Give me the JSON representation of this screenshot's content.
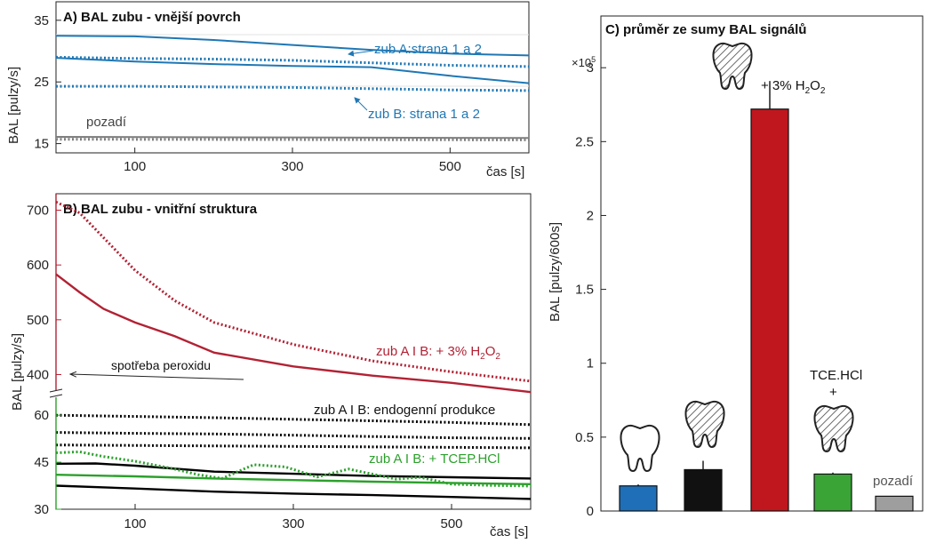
{
  "chart_data": [
    {
      "panel": "A",
      "type": "line",
      "title": "A) BAL zubu - vnější povrch",
      "xlabel": "čas [s]",
      "ylabel": "BAL [pulzy/s]",
      "xlim": [
        0,
        600
      ],
      "ylim": [
        13.5,
        38
      ],
      "x_ticks": [
        100,
        300,
        500
      ],
      "y_ticks": [
        15,
        25,
        35
      ],
      "colors": {
        "zub": "#1f77b4",
        "pozadi": "#7f7f7f"
      },
      "series": [
        {
          "group": "zub A",
          "style": "solid",
          "x": [
            0,
            100,
            200,
            300,
            400,
            500,
            600
          ],
          "y": [
            32.5,
            32.4,
            31.8,
            31.0,
            30.2,
            29.6,
            29.3
          ]
        },
        {
          "group": "zub A",
          "style": "dotted",
          "x": [
            0,
            100,
            200,
            300,
            400,
            500,
            600
          ],
          "y": [
            29.0,
            28.8,
            28.7,
            28.5,
            28.1,
            27.7,
            27.5
          ]
        },
        {
          "group": "zub A",
          "style": "solid",
          "x": [
            0,
            100,
            200,
            300,
            400,
            500,
            600
          ],
          "y": [
            28.9,
            28.3,
            27.9,
            27.6,
            27.4,
            26.0,
            24.8
          ]
        },
        {
          "group": "zub B",
          "style": "dotted",
          "x": [
            0,
            100,
            200,
            300,
            400,
            500,
            600
          ],
          "y": [
            24.3,
            24.3,
            24.2,
            24.1,
            23.9,
            23.7,
            23.6
          ]
        },
        {
          "group": "pozadí",
          "style": "solid",
          "x": [
            0,
            600
          ],
          "y": [
            16.1,
            15.9
          ]
        },
        {
          "group": "pozadí",
          "style": "dotted",
          "x": [
            0,
            600
          ],
          "y": [
            15.7,
            15.6
          ]
        }
      ],
      "annotations": [
        {
          "text": "zub A:strana 1 a 2"
        },
        {
          "text": "zub B: strana 1 a 2"
        },
        {
          "text": "pozadí"
        }
      ]
    },
    {
      "panel": "B",
      "type": "line",
      "title": "B) BAL zubu - vnitřní struktura",
      "xlabel": "čas [s]",
      "ylabel": "BAL [pulzy/s]",
      "xlim": [
        0,
        600
      ],
      "y_upper_range": [
        370,
        730
      ],
      "y_lower_range": [
        30,
        66
      ],
      "x_ticks": [
        100,
        300,
        500
      ],
      "y_ticks_upper": [
        400,
        500,
        600,
        700
      ],
      "y_ticks_lower": [
        30,
        45,
        60
      ],
      "colors": {
        "peroxid": "#b22234",
        "endogenni": "#000000",
        "tcep": "#2ca02c"
      },
      "series": [
        {
          "group": "peroxid",
          "style": "dotted",
          "x": [
            0,
            30,
            60,
            100,
            150,
            200,
            300,
            400,
            500,
            600
          ],
          "y": [
            715,
            695,
            650,
            590,
            535,
            495,
            455,
            425,
            405,
            388
          ]
        },
        {
          "group": "peroxid",
          "style": "solid",
          "x": [
            0,
            30,
            60,
            100,
            150,
            200,
            300,
            400,
            500,
            600
          ],
          "y": [
            583,
            550,
            520,
            495,
            470,
            440,
            415,
            398,
            385,
            368
          ]
        },
        {
          "group": "endogenni",
          "style": "dotted",
          "x": [
            0,
            100,
            200,
            300,
            400,
            500,
            600
          ],
          "y": [
            60,
            59.6,
            59.2,
            58.7,
            58.2,
            57.7,
            57.0
          ]
        },
        {
          "group": "endogenni",
          "style": "dotted",
          "x": [
            0,
            100,
            200,
            300,
            400,
            500,
            600
          ],
          "y": [
            54.5,
            54.2,
            54.0,
            53.6,
            53.2,
            52.8,
            52.6
          ]
        },
        {
          "group": "endogenni",
          "style": "dotted",
          "x": [
            0,
            600
          ],
          "y": [
            50.5,
            49.6
          ]
        },
        {
          "group": "endogenni",
          "style": "solid",
          "x": [
            0,
            50,
            100,
            200,
            300,
            400,
            500,
            600
          ],
          "y": [
            44.5,
            44.6,
            43.9,
            42.0,
            41.3,
            40.6,
            40.2,
            39.8
          ]
        },
        {
          "group": "endogenni",
          "style": "solid",
          "x": [
            0,
            100,
            200,
            300,
            400,
            500,
            600
          ],
          "y": [
            37.5,
            36.6,
            35.6,
            35.0,
            34.5,
            33.9,
            33.3
          ]
        },
        {
          "group": "tcep",
          "style": "dotted",
          "x": [
            0,
            30,
            60,
            100,
            150,
            180,
            210,
            250,
            290,
            330,
            370,
            400,
            430,
            460,
            500,
            550,
            600
          ],
          "y": [
            48,
            48.3,
            46.8,
            45.3,
            42.8,
            41.0,
            39.8,
            44.2,
            43.5,
            40.3,
            42.8,
            41.2,
            39.6,
            40.2,
            38.0,
            37.6,
            37.4
          ]
        },
        {
          "group": "tcep",
          "style": "solid",
          "x": [
            0,
            100,
            200,
            300,
            400,
            500,
            600
          ],
          "y": [
            41,
            40.5,
            39.8,
            39.3,
            38.8,
            38.4,
            38.0
          ]
        }
      ],
      "annotations": [
        {
          "text": "zub A I B: + 3% H",
          "sub": "2",
          "text2": "O",
          "sub2": "2"
        },
        {
          "text": "spotřeba peroxidu"
        },
        {
          "text": "zub A I B: endogenní produkce"
        },
        {
          "text": "zub A I B: + TCEP.HCl"
        }
      ]
    },
    {
      "panel": "C",
      "type": "bar",
      "title": "C) průměr ze sumy BAL signálů",
      "ylabel": "BAL [pulzy/600s]",
      "y_multiplier": "×10",
      "y_multiplier_exp": "5",
      "ylim": [
        0,
        3.35
      ],
      "y_ticks": [
        0,
        0.5,
        1,
        1.5,
        2,
        2.5,
        3
      ],
      "values": [
        0.17,
        0.28,
        2.72,
        0.25,
        0.1
      ],
      "errors": [
        0.01,
        0.06,
        0.19,
        0.01,
        0.0
      ],
      "colors": [
        "#1f6fb8",
        "#111111",
        "#c0171f",
        "#3aa437",
        "#9e9e9e"
      ],
      "annotations": [
        {
          "text": "+ 3% H",
          "sub": "2",
          "text2": "O",
          "sub2": "2"
        },
        {
          "text": "TCE.HCl"
        },
        {
          "text": "+"
        },
        {
          "text": "pozadí"
        }
      ]
    }
  ]
}
